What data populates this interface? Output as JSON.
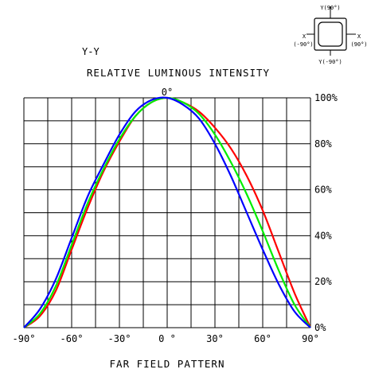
{
  "chart_data": {
    "type": "line",
    "axis_label": "Y-Y",
    "title": "RELATIVE LUMINOUS INTENSITY",
    "xlabel": "FAR FIELD PATTERN",
    "top_label": "0°",
    "x_ticks": [
      "-90°",
      "-60°",
      "-30°",
      "0 °",
      "30°",
      "60°",
      "90°"
    ],
    "y_ticks": [
      "0%",
      "20%",
      "40%",
      "60%",
      "80%",
      "100%"
    ],
    "xlim": [
      -90,
      90
    ],
    "ylim": [
      0,
      100
    ],
    "grid": true,
    "series": [
      {
        "color": "#ff0000",
        "x": [
          -90,
          -80,
          -70,
          -60,
          -50,
          -40,
          -30,
          -20,
          -10,
          0,
          10,
          20,
          30,
          40,
          50,
          60,
          70,
          80,
          90
        ],
        "values": [
          0,
          5,
          16,
          34,
          52,
          68,
          81,
          92,
          98,
          100,
          98,
          94,
          87,
          78,
          66,
          51,
          33,
          15,
          0
        ]
      },
      {
        "color": "#00ee00",
        "x": [
          -90,
          -80,
          -70,
          -60,
          -50,
          -40,
          -30,
          -20,
          -10,
          0,
          10,
          20,
          30,
          40,
          50,
          60,
          70,
          80,
          90
        ],
        "values": [
          0,
          6,
          18,
          36,
          54,
          69,
          82,
          92,
          98,
          100,
          98,
          93,
          84,
          72,
          58,
          42,
          25,
          10,
          0
        ]
      },
      {
        "color": "#0000ff",
        "x": [
          -90,
          -80,
          -70,
          -60,
          -50,
          -40,
          -30,
          -20,
          -10,
          0,
          10,
          20,
          30,
          40,
          50,
          60,
          70,
          80,
          90
        ],
        "values": [
          0,
          8,
          21,
          39,
          57,
          71,
          84,
          94,
          99,
          100,
          97,
          91,
          80,
          66,
          50,
          34,
          19,
          7,
          0
        ]
      }
    ]
  },
  "inset": {
    "top": "Y(90°)",
    "bottom": "Y(-90°)",
    "left_axis": "X",
    "left": "(-90°)",
    "right_axis": "X",
    "right": "(90°)"
  },
  "colors": {
    "grid": "#000000",
    "background": "#ffffff"
  }
}
